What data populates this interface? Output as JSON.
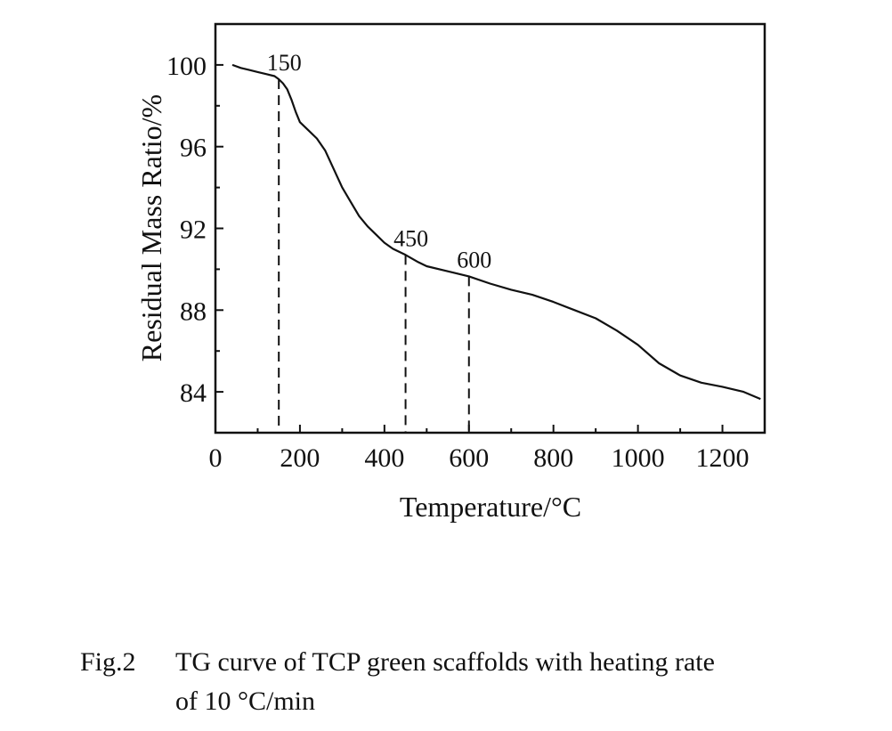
{
  "chart_data": {
    "type": "line",
    "title": "",
    "xlabel": "Temperature/°C",
    "ylabel": "Residual Mass Ratio/%",
    "xlim": [
      0,
      1300
    ],
    "ylim": [
      82,
      102
    ],
    "xticks": [
      0,
      200,
      400,
      600,
      800,
      1000,
      1200
    ],
    "xtick_labels": [
      "0",
      "200",
      "400",
      "600",
      "800",
      "1000",
      "1200"
    ],
    "yticks": [
      84,
      88,
      92,
      96,
      100
    ],
    "ytick_labels": [
      "84",
      "88",
      "92",
      "96",
      "100"
    ],
    "grid": false,
    "series": [
      {
        "name": "TG curve",
        "x": [
          40,
          60,
          80,
          100,
          120,
          140,
          150,
          160,
          170,
          180,
          190,
          200,
          220,
          240,
          260,
          280,
          300,
          320,
          340,
          360,
          380,
          400,
          420,
          450,
          480,
          500,
          550,
          600,
          650,
          700,
          750,
          800,
          850,
          900,
          950,
          1000,
          1050,
          1100,
          1150,
          1200,
          1250,
          1290
        ],
        "values": [
          100.0,
          99.85,
          99.75,
          99.65,
          99.55,
          99.45,
          99.3,
          99.1,
          98.8,
          98.3,
          97.7,
          97.2,
          96.8,
          96.4,
          95.8,
          94.9,
          94.0,
          93.3,
          92.6,
          92.1,
          91.7,
          91.3,
          91.0,
          90.7,
          90.35,
          90.15,
          89.9,
          89.65,
          89.3,
          89.0,
          88.75,
          88.4,
          88.0,
          87.6,
          87.0,
          86.3,
          85.4,
          84.8,
          84.45,
          84.25,
          84.0,
          83.65
        ]
      }
    ],
    "annotations": [
      {
        "x": 150,
        "y": 99.3,
        "label": "150"
      },
      {
        "x": 450,
        "y": 90.7,
        "label": "450"
      },
      {
        "x": 600,
        "y": 89.65,
        "label": "600"
      }
    ]
  },
  "caption": {
    "label": "Fig.2",
    "text_line1": "TG curve of TCP green scaffolds with heating rate",
    "text_line2": "of 10 °C/min"
  }
}
